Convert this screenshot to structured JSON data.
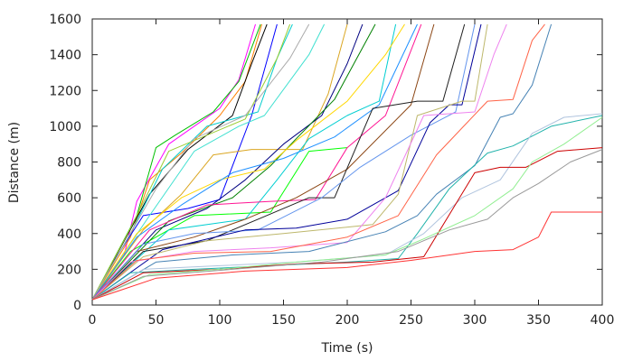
{
  "chart_data": {
    "type": "line",
    "title": "",
    "xlabel": "Time (s)",
    "ylabel": "Distance (m)",
    "xlim": [
      0,
      400
    ],
    "ylim": [
      0,
      1600
    ],
    "xticks": [
      0,
      50,
      100,
      150,
      200,
      250,
      300,
      350,
      400
    ],
    "yticks": [
      0,
      200,
      400,
      600,
      800,
      1000,
      1200,
      1400,
      1600
    ],
    "grid": false,
    "legend": "none",
    "series": [
      {
        "color": "#ff00ff",
        "points": [
          [
            0,
            30
          ],
          [
            25,
            280
          ],
          [
            35,
            580
          ],
          [
            60,
            900
          ],
          [
            100,
            1100
          ],
          [
            115,
            1260
          ],
          [
            128,
            1570
          ]
        ]
      },
      {
        "color": "#ff7f00",
        "points": [
          [
            0,
            30
          ],
          [
            30,
            380
          ],
          [
            45,
            700
          ],
          [
            70,
            850
          ],
          [
            100,
            1060
          ],
          [
            120,
            1250
          ],
          [
            133,
            1570
          ]
        ]
      },
      {
        "color": "#00c000",
        "points": [
          [
            0,
            30
          ],
          [
            35,
            500
          ],
          [
            50,
            880
          ],
          [
            65,
            950
          ],
          [
            95,
            1080
          ],
          [
            115,
            1250
          ],
          [
            132,
            1570
          ]
        ]
      },
      {
        "color": "#0000ff",
        "points": [
          [
            0,
            30
          ],
          [
            20,
            280
          ],
          [
            40,
            500
          ],
          [
            75,
            540
          ],
          [
            100,
            590
          ],
          [
            125,
            1060
          ],
          [
            145,
            1570
          ]
        ]
      },
      {
        "color": "#000000",
        "points": [
          [
            0,
            30
          ],
          [
            45,
            620
          ],
          [
            75,
            870
          ],
          [
            110,
            1060
          ],
          [
            125,
            1350
          ],
          [
            137,
            1570
          ]
        ]
      },
      {
        "color": "#00cccc",
        "points": [
          [
            0,
            30
          ],
          [
            30,
            400
          ],
          [
            55,
            760
          ],
          [
            90,
            1000
          ],
          [
            130,
            1080
          ],
          [
            145,
            1380
          ],
          [
            157,
            1570
          ]
        ]
      },
      {
        "color": "#9acd32",
        "points": [
          [
            0,
            30
          ],
          [
            30,
            430
          ],
          [
            60,
            860
          ],
          [
            120,
            1040
          ],
          [
            145,
            1380
          ],
          [
            155,
            1570
          ]
        ]
      },
      {
        "color": "#aaaaaa",
        "points": [
          [
            0,
            30
          ],
          [
            50,
            650
          ],
          [
            80,
            930
          ],
          [
            120,
            1060
          ],
          [
            155,
            1380
          ],
          [
            170,
            1570
          ]
        ]
      },
      {
        "color": "#40e0d0",
        "points": [
          [
            0,
            30
          ],
          [
            45,
            500
          ],
          [
            80,
            860
          ],
          [
            115,
            1000
          ],
          [
            135,
            1060
          ],
          [
            170,
            1400
          ],
          [
            182,
            1570
          ]
        ]
      },
      {
        "color": "#daa520",
        "points": [
          [
            0,
            30
          ],
          [
            40,
            420
          ],
          [
            70,
            620
          ],
          [
            95,
            840
          ],
          [
            125,
            870
          ],
          [
            165,
            870
          ],
          [
            185,
            1180
          ],
          [
            200,
            1570
          ]
        ]
      },
      {
        "color": "#00ff00",
        "points": [
          [
            0,
            30
          ],
          [
            30,
            300
          ],
          [
            80,
            500
          ],
          [
            140,
            520
          ],
          [
            170,
            860
          ],
          [
            200,
            880
          ],
          [
            200,
            880
          ]
        ]
      },
      {
        "color": "#000080",
        "points": [
          [
            0,
            30
          ],
          [
            50,
            420
          ],
          [
            90,
            540
          ],
          [
            120,
            700
          ],
          [
            150,
            900
          ],
          [
            180,
            1060
          ],
          [
            200,
            1350
          ],
          [
            212,
            1570
          ]
        ]
      },
      {
        "color": "#008000",
        "points": [
          [
            0,
            30
          ],
          [
            60,
            470
          ],
          [
            110,
            600
          ],
          [
            140,
            780
          ],
          [
            160,
            930
          ],
          [
            190,
            1150
          ],
          [
            222,
            1570
          ]
        ]
      },
      {
        "color": "#00ced1",
        "points": [
          [
            0,
            30
          ],
          [
            60,
            420
          ],
          [
            120,
            480
          ],
          [
            145,
            700
          ],
          [
            170,
            930
          ],
          [
            200,
            1060
          ],
          [
            225,
            1140
          ],
          [
            238,
            1570
          ]
        ]
      },
      {
        "color": "#ffd700",
        "points": [
          [
            0,
            30
          ],
          [
            35,
            400
          ],
          [
            70,
            600
          ],
          [
            100,
            700
          ],
          [
            135,
            760
          ],
          [
            160,
            920
          ],
          [
            200,
            1140
          ],
          [
            230,
            1400
          ],
          [
            245,
            1570
          ]
        ]
      },
      {
        "color": "#1e90ff",
        "points": [
          [
            0,
            30
          ],
          [
            35,
            380
          ],
          [
            70,
            560
          ],
          [
            110,
            740
          ],
          [
            150,
            820
          ],
          [
            190,
            940
          ],
          [
            225,
            1120
          ],
          [
            255,
            1570
          ]
        ]
      },
      {
        "color": "#ff1493",
        "points": [
          [
            0,
            30
          ],
          [
            45,
            420
          ],
          [
            90,
            560
          ],
          [
            140,
            580
          ],
          [
            175,
            590
          ],
          [
            200,
            880
          ],
          [
            230,
            1060
          ],
          [
            258,
            1570
          ]
        ]
      },
      {
        "color": "#8b4513",
        "points": [
          [
            0,
            30
          ],
          [
            35,
            300
          ],
          [
            80,
            380
          ],
          [
            120,
            480
          ],
          [
            160,
            600
          ],
          [
            200,
            760
          ],
          [
            250,
            1120
          ],
          [
            268,
            1570
          ]
        ]
      },
      {
        "color": "#202020",
        "points": [
          [
            0,
            30
          ],
          [
            40,
            300
          ],
          [
            90,
            360
          ],
          [
            130,
            480
          ],
          [
            170,
            600
          ],
          [
            190,
            600
          ],
          [
            220,
            1100
          ],
          [
            255,
            1140
          ],
          [
            275,
            1140
          ],
          [
            292,
            1570
          ]
        ]
      },
      {
        "color": "#6495ed",
        "points": [
          [
            0,
            30
          ],
          [
            40,
            340
          ],
          [
            80,
            400
          ],
          [
            130,
            420
          ],
          [
            180,
            600
          ],
          [
            210,
            770
          ],
          [
            250,
            950
          ],
          [
            285,
            1080
          ],
          [
            300,
            1570
          ]
        ]
      },
      {
        "color": "#000099",
        "points": [
          [
            0,
            30
          ],
          [
            55,
            310
          ],
          [
            120,
            420
          ],
          [
            160,
            430
          ],
          [
            200,
            480
          ],
          [
            240,
            640
          ],
          [
            265,
            1020
          ],
          [
            280,
            1120
          ],
          [
            290,
            1120
          ],
          [
            305,
            1570
          ]
        ]
      },
      {
        "color": "#bdb76b",
        "points": [
          [
            0,
            30
          ],
          [
            40,
            270
          ],
          [
            90,
            360
          ],
          [
            150,
            400
          ],
          [
            220,
            450
          ],
          [
            240,
            620
          ],
          [
            255,
            1060
          ],
          [
            290,
            1140
          ],
          [
            300,
            1140
          ],
          [
            310,
            1570
          ]
        ]
      },
      {
        "color": "#ee82ee",
        "points": [
          [
            0,
            30
          ],
          [
            30,
            240
          ],
          [
            80,
            300
          ],
          [
            140,
            320
          ],
          [
            200,
            350
          ],
          [
            230,
            600
          ],
          [
            260,
            1060
          ],
          [
            300,
            1080
          ],
          [
            315,
            1400
          ],
          [
            325,
            1570
          ]
        ]
      },
      {
        "color": "#ff6347",
        "points": [
          [
            0,
            30
          ],
          [
            35,
            250
          ],
          [
            80,
            290
          ],
          [
            140,
            300
          ],
          [
            200,
            380
          ],
          [
            240,
            500
          ],
          [
            270,
            840
          ],
          [
            310,
            1140
          ],
          [
            330,
            1150
          ],
          [
            345,
            1480
          ],
          [
            355,
            1570
          ]
        ]
      },
      {
        "color": "#4682b4",
        "points": [
          [
            0,
            30
          ],
          [
            50,
            240
          ],
          [
            110,
            280
          ],
          [
            170,
            300
          ],
          [
            230,
            410
          ],
          [
            255,
            500
          ],
          [
            270,
            620
          ],
          [
            300,
            780
          ],
          [
            320,
            1050
          ],
          [
            330,
            1070
          ],
          [
            345,
            1230
          ],
          [
            360,
            1570
          ]
        ]
      },
      {
        "color": "#20b2aa",
        "points": [
          [
            0,
            30
          ],
          [
            30,
            180
          ],
          [
            80,
            200
          ],
          [
            140,
            220
          ],
          [
            200,
            240
          ],
          [
            240,
            260
          ],
          [
            255,
            400
          ],
          [
            280,
            650
          ],
          [
            310,
            850
          ],
          [
            330,
            890
          ],
          [
            360,
            1000
          ],
          [
            400,
            1060
          ]
        ]
      },
      {
        "color": "#b0c4de",
        "points": [
          [
            0,
            30
          ],
          [
            40,
            200
          ],
          [
            100,
            220
          ],
          [
            160,
            240
          ],
          [
            230,
            280
          ],
          [
            260,
            400
          ],
          [
            290,
            600
          ],
          [
            320,
            700
          ],
          [
            345,
            960
          ],
          [
            370,
            1050
          ],
          [
            400,
            1070
          ]
        ]
      },
      {
        "color": "#cc0000",
        "points": [
          [
            0,
            30
          ],
          [
            40,
            180
          ],
          [
            100,
            200
          ],
          [
            160,
            230
          ],
          [
            220,
            240
          ],
          [
            260,
            270
          ],
          [
            300,
            740
          ],
          [
            320,
            770
          ],
          [
            340,
            770
          ],
          [
            365,
            860
          ],
          [
            400,
            880
          ]
        ]
      },
      {
        "color": "#90ee90",
        "points": [
          [
            0,
            30
          ],
          [
            45,
            170
          ],
          [
            100,
            200
          ],
          [
            160,
            240
          ],
          [
            230,
            280
          ],
          [
            260,
            370
          ],
          [
            300,
            500
          ],
          [
            330,
            650
          ],
          [
            345,
            800
          ],
          [
            370,
            900
          ],
          [
            400,
            1050
          ]
        ]
      },
      {
        "color": "#999999",
        "points": [
          [
            0,
            30
          ],
          [
            40,
            160
          ],
          [
            110,
            200
          ],
          [
            180,
            240
          ],
          [
            240,
            300
          ],
          [
            280,
            420
          ],
          [
            310,
            480
          ],
          [
            330,
            600
          ],
          [
            350,
            680
          ],
          [
            375,
            800
          ],
          [
            400,
            870
          ]
        ]
      },
      {
        "color": "#ff3333",
        "points": [
          [
            0,
            30
          ],
          [
            50,
            150
          ],
          [
            120,
            190
          ],
          [
            200,
            210
          ],
          [
            250,
            250
          ],
          [
            300,
            300
          ],
          [
            330,
            310
          ],
          [
            350,
            380
          ],
          [
            360,
            520
          ],
          [
            400,
            520
          ]
        ]
      }
    ]
  }
}
